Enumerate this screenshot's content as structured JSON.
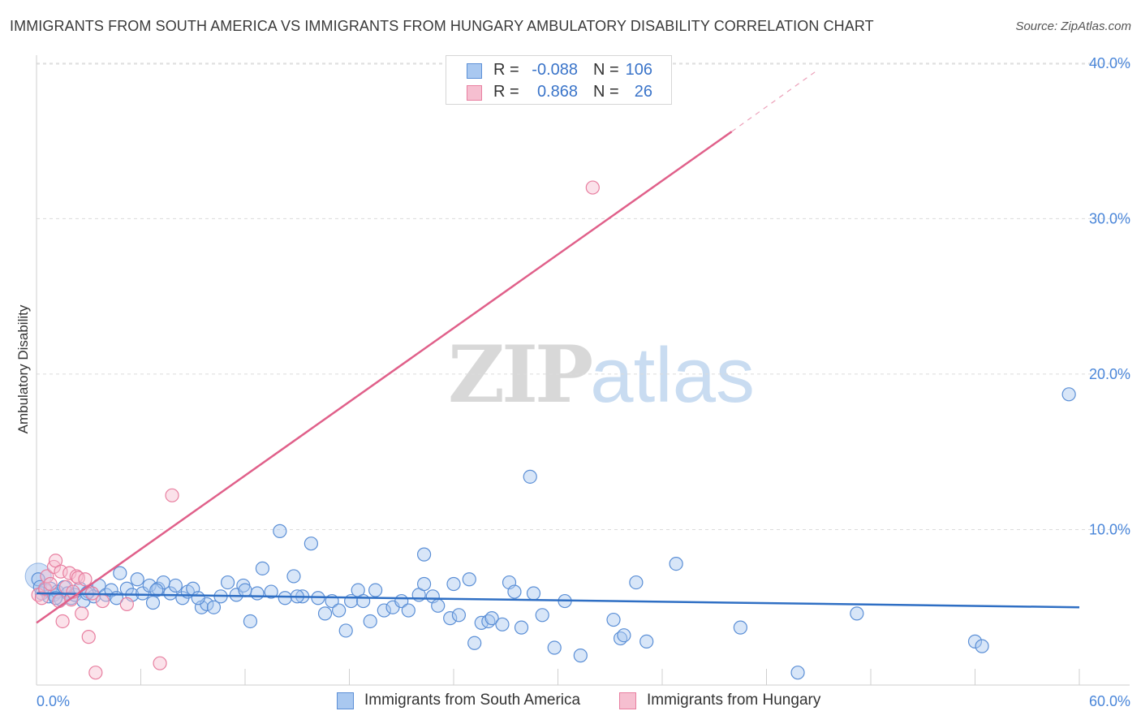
{
  "title": "IMMIGRANTS FROM SOUTH AMERICA VS IMMIGRANTS FROM HUNGARY AMBULATORY DISABILITY CORRELATION CHART",
  "source": "Source: ZipAtlas.com",
  "watermark": {
    "zip": "ZIP",
    "atlas": "atlas"
  },
  "legend": {
    "south_america": {
      "r_label": "R =",
      "r_value": "-0.088",
      "n_label": "N =",
      "n_value": "106"
    },
    "hungary": {
      "r_label": "R =",
      "r_value": "0.868",
      "n_label": "N =",
      "n_value": "26"
    }
  },
  "bottom_legend": {
    "south_america": "Immigrants from South America",
    "hungary": "Immigrants from Hungary"
  },
  "colors": {
    "blue_fill": "#a9c8f0",
    "blue_stroke": "#5b8fd6",
    "blue_line": "#2f6fc4",
    "pink_fill": "#f6bfd0",
    "pink_stroke": "#e87fa0",
    "pink_line": "#e0608a",
    "tick_text": "#4a86d9",
    "grid": "#dcdcdc"
  },
  "chart_data": {
    "type": "scatter",
    "title": "IMMIGRANTS FROM SOUTH AMERICA VS IMMIGRANTS FROM HUNGARY AMBULATORY DISABILITY CORRELATION CHART",
    "xlabel": "",
    "ylabel": "Ambulatory Disability",
    "xlim": [
      0,
      60
    ],
    "ylim": [
      0,
      40
    ],
    "x_tick_labels": [
      "0.0%",
      "60.0%"
    ],
    "y_ticks": [
      10,
      20,
      30,
      40
    ],
    "y_tick_labels": [
      "10.0%",
      "20.0%",
      "30.0%",
      "40.0%"
    ],
    "series": [
      {
        "name": "Immigrants from South America",
        "color": "blue",
        "R": -0.088,
        "N": 106,
        "trend": {
          "x": [
            0,
            60
          ],
          "y": [
            5.9,
            5.0
          ]
        },
        "points": [
          [
            0.1,
            6.8
          ],
          [
            0.2,
            6.3
          ],
          [
            0.3,
            5.9
          ],
          [
            0.5,
            6.1
          ],
          [
            0.7,
            5.7
          ],
          [
            0.8,
            6.2
          ],
          [
            1.0,
            5.8
          ],
          [
            1.2,
            6.0
          ],
          [
            1.4,
            5.5
          ],
          [
            1.6,
            6.3
          ],
          [
            1.8,
            5.9
          ],
          [
            2.0,
            5.6
          ],
          [
            2.2,
            5.8
          ],
          [
            2.5,
            6.2
          ],
          [
            2.7,
            5.4
          ],
          [
            3.0,
            6.0
          ],
          [
            3.3,
            5.7
          ],
          [
            3.6,
            6.4
          ],
          [
            4.0,
            5.8
          ],
          [
            4.3,
            6.1
          ],
          [
            4.8,
            7.2
          ],
          [
            5.2,
            6.2
          ],
          [
            5.5,
            5.8
          ],
          [
            5.8,
            6.8
          ],
          [
            6.1,
            5.9
          ],
          [
            6.5,
            6.4
          ],
          [
            6.7,
            5.3
          ],
          [
            7.0,
            6.2
          ],
          [
            7.3,
            6.6
          ],
          [
            7.7,
            5.9
          ],
          [
            8.0,
            6.4
          ],
          [
            8.4,
            5.6
          ],
          [
            8.7,
            6.0
          ],
          [
            9.0,
            6.2
          ],
          [
            9.5,
            5.0
          ],
          [
            9.8,
            5.2
          ],
          [
            10.2,
            5.0
          ],
          [
            10.6,
            5.7
          ],
          [
            11.0,
            6.6
          ],
          [
            11.5,
            5.8
          ],
          [
            11.9,
            6.4
          ],
          [
            12.3,
            4.1
          ],
          [
            12.7,
            5.9
          ],
          [
            13.0,
            7.5
          ],
          [
            13.5,
            6.0
          ],
          [
            14.0,
            9.9
          ],
          [
            14.3,
            5.6
          ],
          [
            14.8,
            7.0
          ],
          [
            15.3,
            5.7
          ],
          [
            15.8,
            9.1
          ],
          [
            16.2,
            5.6
          ],
          [
            16.6,
            4.6
          ],
          [
            17.0,
            5.4
          ],
          [
            17.4,
            4.8
          ],
          [
            17.8,
            3.5
          ],
          [
            18.1,
            5.4
          ],
          [
            18.5,
            6.1
          ],
          [
            18.8,
            5.4
          ],
          [
            19.2,
            4.1
          ],
          [
            19.5,
            6.1
          ],
          [
            20.0,
            4.8
          ],
          [
            20.5,
            5.0
          ],
          [
            21.0,
            5.4
          ],
          [
            21.4,
            4.8
          ],
          [
            22.0,
            5.8
          ],
          [
            22.3,
            6.5
          ],
          [
            22.3,
            8.4
          ],
          [
            22.8,
            5.7
          ],
          [
            23.1,
            5.1
          ],
          [
            23.8,
            4.3
          ],
          [
            24.0,
            6.5
          ],
          [
            24.3,
            4.5
          ],
          [
            24.9,
            6.8
          ],
          [
            25.2,
            2.7
          ],
          [
            25.6,
            4.0
          ],
          [
            26.0,
            4.1
          ],
          [
            26.2,
            4.3
          ],
          [
            26.8,
            3.9
          ],
          [
            27.2,
            6.6
          ],
          [
            27.5,
            6.0
          ],
          [
            27.9,
            3.7
          ],
          [
            28.4,
            13.4
          ],
          [
            28.6,
            5.9
          ],
          [
            29.1,
            4.5
          ],
          [
            29.8,
            2.4
          ],
          [
            30.4,
            5.4
          ],
          [
            31.3,
            1.9
          ],
          [
            33.2,
            4.2
          ],
          [
            33.6,
            3.0
          ],
          [
            33.8,
            3.2
          ],
          [
            34.5,
            6.6
          ],
          [
            35.1,
            2.8
          ],
          [
            36.8,
            7.8
          ],
          [
            40.5,
            3.7
          ],
          [
            43.8,
            0.8
          ],
          [
            47.2,
            4.6
          ],
          [
            54.0,
            2.8
          ],
          [
            54.4,
            2.5
          ],
          [
            59.4,
            18.7
          ],
          [
            1.1,
            5.6
          ],
          [
            2.9,
            5.9
          ],
          [
            4.6,
            5.6
          ],
          [
            6.9,
            6.1
          ],
          [
            9.3,
            5.6
          ],
          [
            12.0,
            6.1
          ],
          [
            15.0,
            5.7
          ]
        ]
      },
      {
        "name": "Immigrants from Hungary",
        "color": "pink",
        "R": 0.868,
        "N": 26,
        "trend": {
          "x": [
            0,
            40
          ],
          "y": [
            4.0,
            35.6
          ]
        },
        "trend_extension": {
          "x": [
            40,
            45
          ],
          "y": [
            35.6,
            39.6
          ]
        },
        "points": [
          [
            0.1,
            5.8
          ],
          [
            0.3,
            5.6
          ],
          [
            0.5,
            6.2
          ],
          [
            0.6,
            7.0
          ],
          [
            0.8,
            6.5
          ],
          [
            1.0,
            7.6
          ],
          [
            1.1,
            8.0
          ],
          [
            1.3,
            5.4
          ],
          [
            1.4,
            7.3
          ],
          [
            1.5,
            4.1
          ],
          [
            1.7,
            6.3
          ],
          [
            1.9,
            7.2
          ],
          [
            2.0,
            5.5
          ],
          [
            2.1,
            6.0
          ],
          [
            2.3,
            7.0
          ],
          [
            2.4,
            6.9
          ],
          [
            2.6,
            4.6
          ],
          [
            2.8,
            6.8
          ],
          [
            3.0,
            3.1
          ],
          [
            3.2,
            5.9
          ],
          [
            3.4,
            0.8
          ],
          [
            3.8,
            5.4
          ],
          [
            5.2,
            5.2
          ],
          [
            7.1,
            1.4
          ],
          [
            7.8,
            12.2
          ],
          [
            32.0,
            32.0
          ]
        ]
      }
    ]
  }
}
